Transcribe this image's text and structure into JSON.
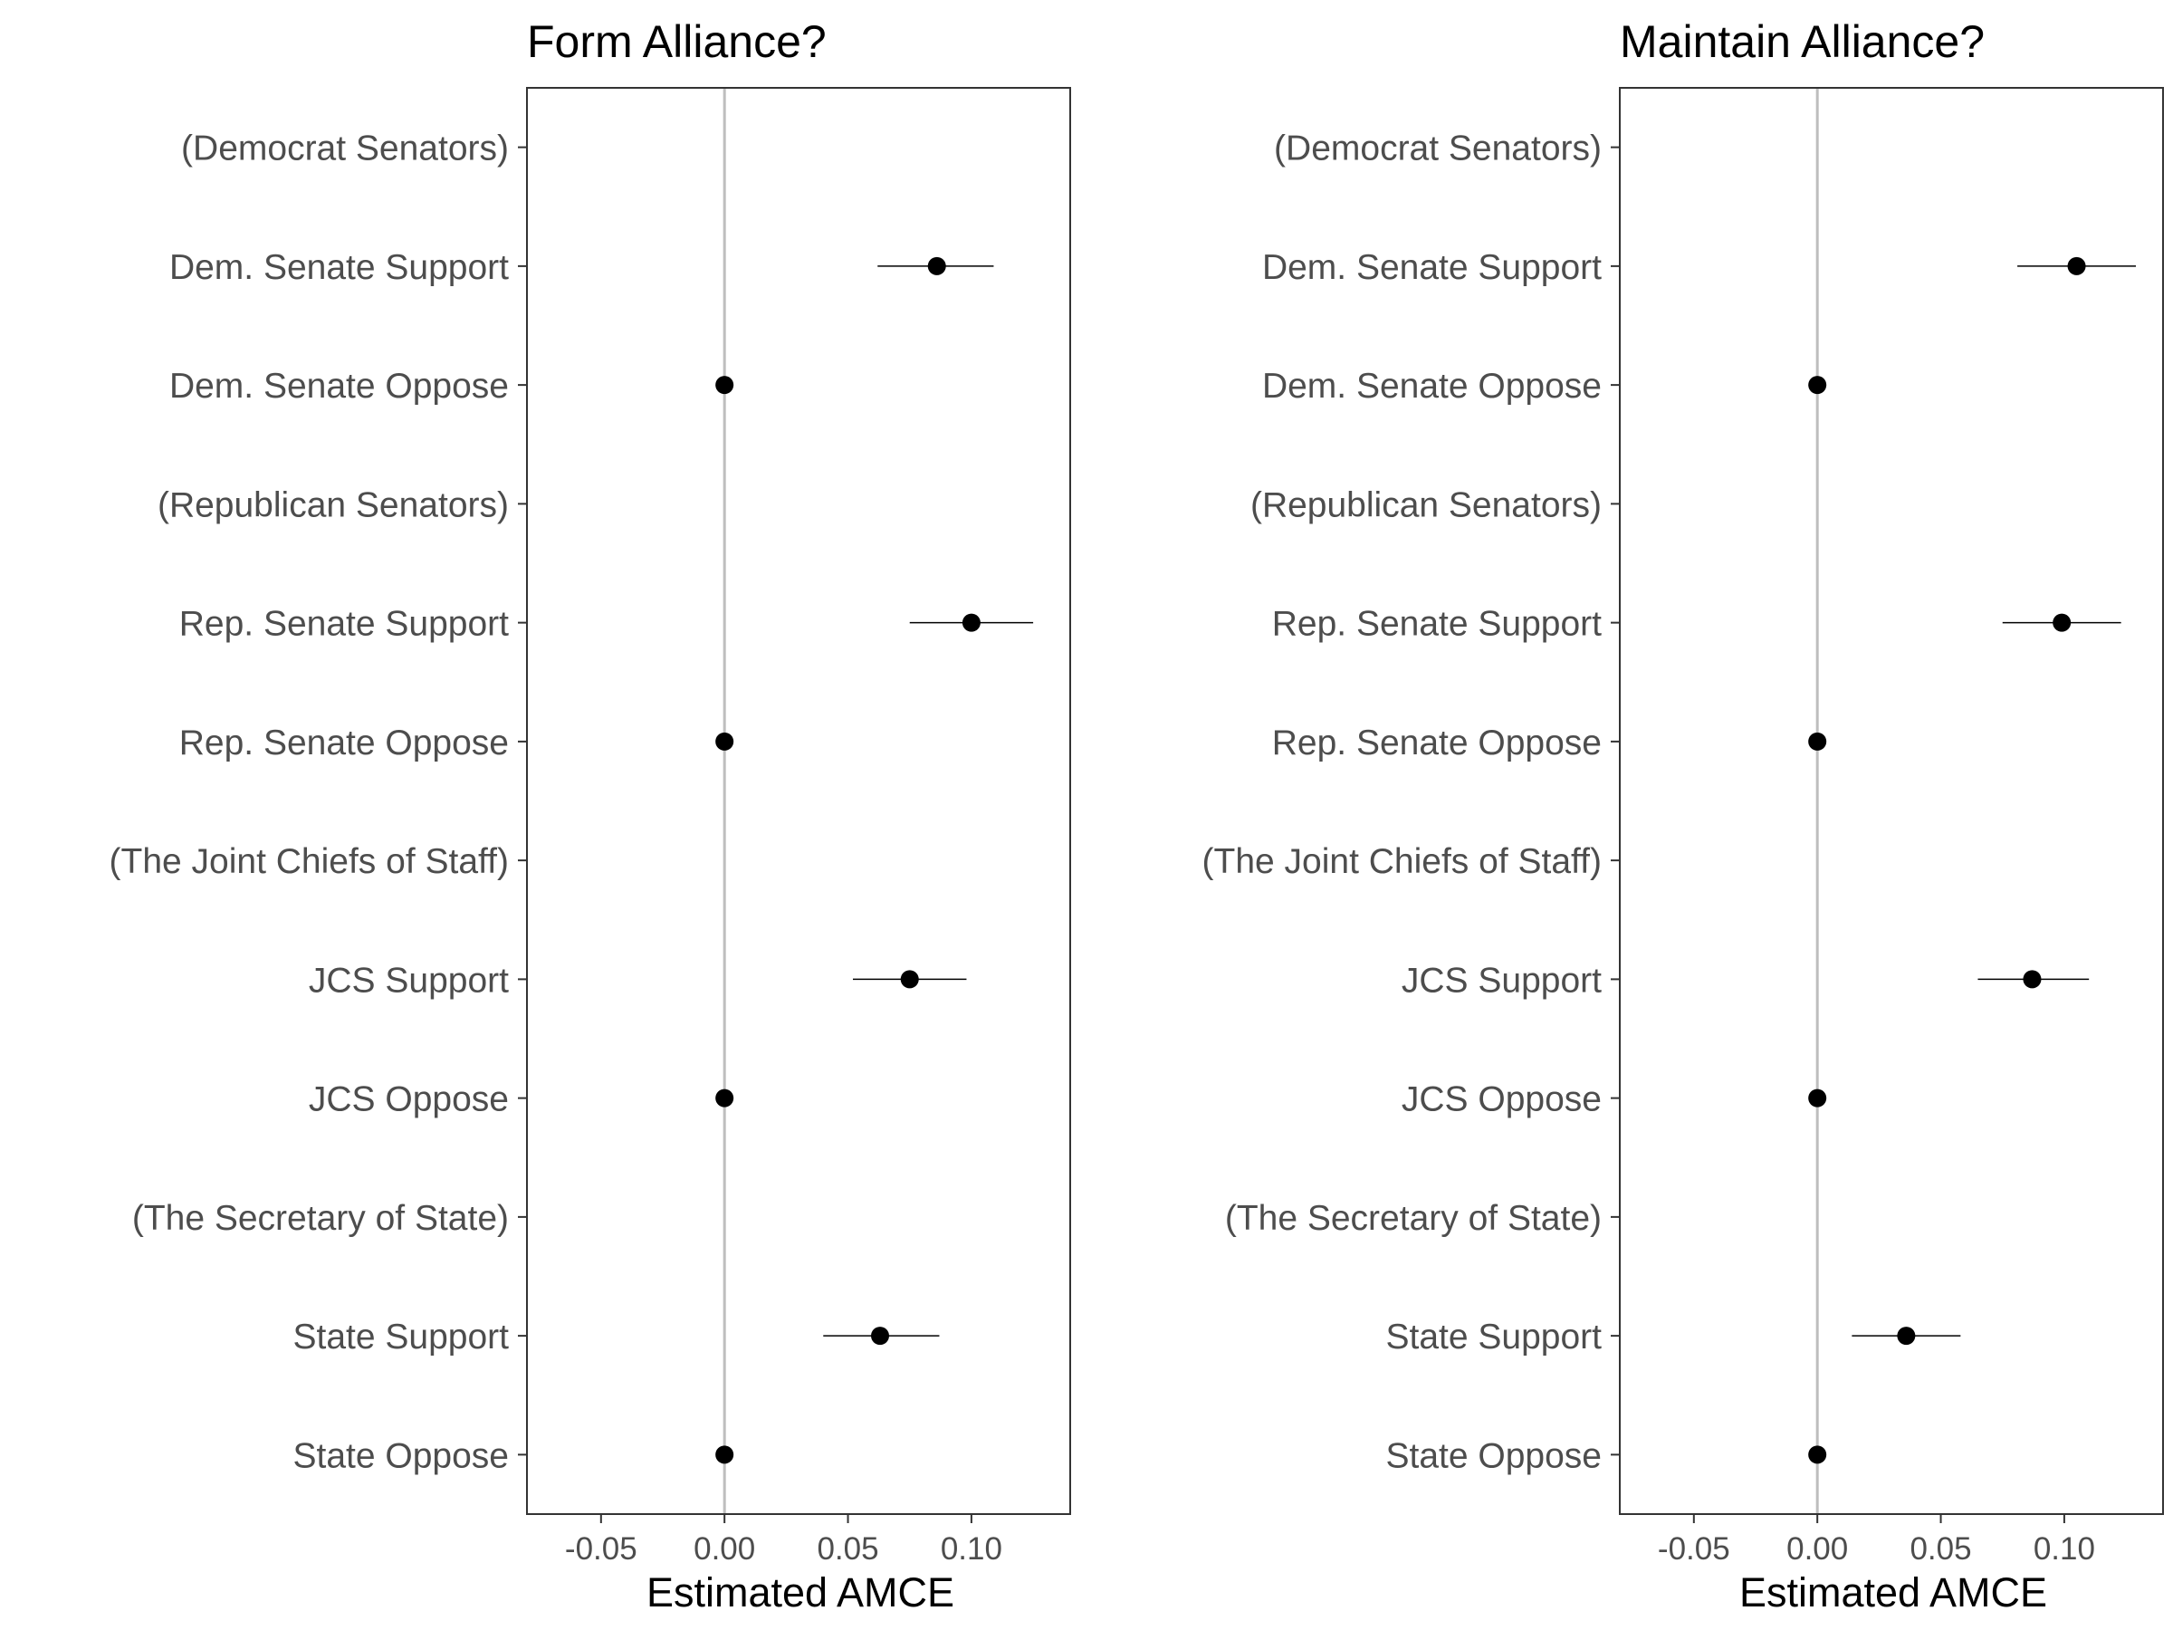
{
  "chart_data": [
    {
      "type": "scatter",
      "title": "Form Alliance?",
      "xlabel": "Estimated AMCE",
      "ylabel": "",
      "xlim": [
        -0.08,
        0.14
      ],
      "xticks": [
        -0.05,
        0.0,
        0.05,
        0.1
      ],
      "xtick_labels": [
        "-0.05",
        "0.00",
        "0.05",
        "0.10"
      ],
      "reference_line": 0,
      "grid": false,
      "categories": [
        "(Democrat Senators)",
        "Dem. Senate Support",
        "Dem. Senate Oppose",
        "(Republican Senators)",
        "Rep. Senate Support",
        "Rep. Senate Oppose",
        "(The Joint Chiefs of Staff)",
        "JCS Support",
        "JCS Oppose",
        "(The Secretary of State)",
        "State Support",
        "State Oppose"
      ],
      "estimates": [
        null,
        0.086,
        0.0,
        null,
        0.1,
        0.0,
        null,
        0.075,
        0.0,
        null,
        0.063,
        0.0
      ],
      "ci_low": [
        null,
        0.062,
        null,
        null,
        0.075,
        null,
        null,
        0.052,
        null,
        null,
        0.04,
        null
      ],
      "ci_high": [
        null,
        0.109,
        null,
        null,
        0.125,
        null,
        null,
        0.098,
        null,
        null,
        0.087,
        null
      ]
    },
    {
      "type": "scatter",
      "title": "Maintain Alliance?",
      "xlabel": "Estimated AMCE",
      "ylabel": "",
      "xlim": [
        -0.08,
        0.14
      ],
      "xticks": [
        -0.05,
        0.0,
        0.05,
        0.1
      ],
      "xtick_labels": [
        "-0.05",
        "0.00",
        "0.05",
        "0.10"
      ],
      "reference_line": 0,
      "grid": false,
      "categories": [
        "(Democrat Senators)",
        "Dem. Senate Support",
        "Dem. Senate Oppose",
        "(Republican Senators)",
        "Rep. Senate Support",
        "Rep. Senate Oppose",
        "(The Joint Chiefs of Staff)",
        "JCS Support",
        "JCS Oppose",
        "(The Secretary of State)",
        "State Support",
        "State Oppose"
      ],
      "estimates": [
        null,
        0.105,
        0.0,
        null,
        0.099,
        0.0,
        null,
        0.087,
        0.0,
        null,
        0.036,
        0.0
      ],
      "ci_low": [
        null,
        0.081,
        null,
        null,
        0.075,
        null,
        null,
        0.065,
        null,
        null,
        0.014,
        null
      ],
      "ci_high": [
        null,
        0.129,
        null,
        null,
        0.123,
        null,
        null,
        0.11,
        null,
        null,
        0.058,
        null
      ]
    }
  ]
}
